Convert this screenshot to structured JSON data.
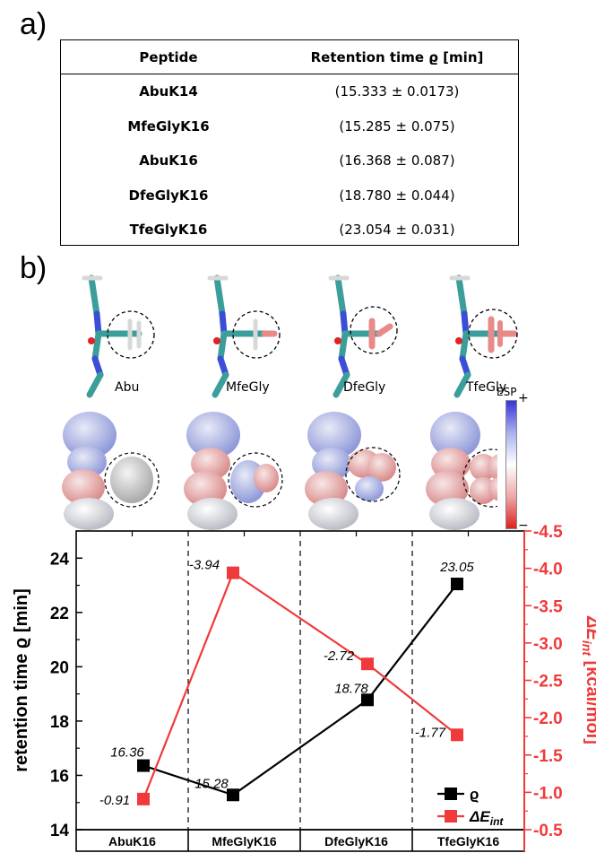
{
  "panel_a_label": "a)",
  "panel_b_label": "b)",
  "table": {
    "headers": [
      "Peptide",
      "Retention time ϱ [min]"
    ],
    "rows": [
      [
        "AbuK14",
        "(15.333 ± 0.0173)"
      ],
      [
        "MfeGlyK16",
        "(15.285 ± 0.075)"
      ],
      [
        "AbuK16",
        "(16.368 ± 0.087)"
      ],
      [
        "DfeGlyK16",
        "(18.780 ± 0.044)"
      ],
      [
        "TfeGlyK16",
        "(23.054 ± 0.031)"
      ]
    ]
  },
  "molecules": {
    "labels": [
      "Abu",
      "MfeGly",
      "DfeGly",
      "TfeGly"
    ],
    "esp_title": "ESP",
    "esp_plus": "+",
    "esp_minus": "−"
  },
  "colors": {
    "black_series": "#000000",
    "red_series": "#f0393a",
    "teal": "#3c9e9a",
    "nitrogen": "#3b4fd6",
    "oxygen": "#e02424",
    "fluorine": "#e88a8a"
  },
  "chart_data": {
    "type": "line",
    "categories": [
      "AbuK16",
      "MfeGlyK16",
      "DfeGlyK16",
      "TfeGlyK16"
    ],
    "ylabel": "retention time ϱ [min]",
    "ylabel_right": "ΔE",
    "ylabel_right_sub": "int",
    "ylabel_right_unit": " [kcal/mol]",
    "ylim": [
      14,
      25
    ],
    "yticks": [
      14,
      16,
      18,
      20,
      22,
      24
    ],
    "ylim_right": [
      -0.5,
      -4.5
    ],
    "yticks_right": [
      "-0.5",
      "-1.0",
      "-1.5",
      "-2.0",
      "-2.5",
      "-3.0",
      "-3.5",
      "-4.0",
      "-4.5"
    ],
    "series": [
      {
        "name": "ϱ",
        "axis": "left",
        "color": "#000000",
        "x": [
          0.1,
          0.9,
          2.1,
          2.9
        ],
        "values": [
          16.36,
          15.28,
          18.78,
          23.05
        ],
        "labels": [
          "16.36",
          "15.28",
          "18.78",
          "23.05"
        ]
      },
      {
        "name": "ΔE",
        "name_sub": "int",
        "axis": "right",
        "color": "#f0393a",
        "x": [
          0.1,
          0.9,
          2.1,
          2.9
        ],
        "values": [
          -0.91,
          -3.94,
          -2.72,
          -1.77
        ],
        "labels": [
          "-0.91",
          "-3.94",
          "-2.72",
          "-1.77"
        ]
      }
    ],
    "grid": "vertical dashed separators between categories",
    "legend_position": "bottom-right"
  }
}
